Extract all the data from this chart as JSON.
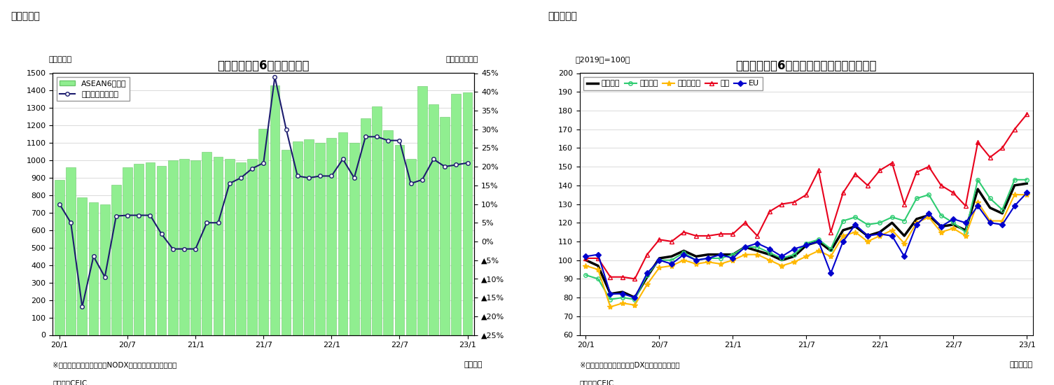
{
  "chart1": {
    "title": "アセアン主要6カ国の輸出額",
    "title_label": "（図表１）",
    "ylabel_left": "（億ドル）",
    "ylabel_right": "（前年同月比）",
    "xlabel": "（年月）",
    "note1": "※シンガポールの輸出額はNODX（石油と再輸出除く）。",
    "note2": "（資料）CEIC",
    "legend_bar": "ASEAN6カ国計",
    "legend_line": "増加率（右目盛）",
    "bar_color": "#90EE90",
    "bar_edge_color": "#6DC86D",
    "line_color": "#1C1C6E",
    "ylim_left": [
      0,
      1500
    ],
    "ylim_right": [
      -0.25,
      0.45
    ],
    "ytick_labels_right": [
      "▲25%",
      "▲20%",
      "▲15%",
      "▲10%",
      "▲5%",
      "0%",
      "5%",
      "10%",
      "15%",
      "20%",
      "25%",
      "30%",
      "35%",
      "40%",
      "45%"
    ],
    "ytick_values_right": [
      -0.25,
      -0.2,
      -0.15,
      -0.1,
      -0.05,
      0.0,
      0.05,
      0.1,
      0.15,
      0.2,
      0.25,
      0.3,
      0.35,
      0.4,
      0.45
    ],
    "bar_values": [
      890,
      960,
      790,
      760,
      750,
      860,
      960,
      980,
      990,
      970,
      1000,
      1010,
      1000,
      1050,
      1020,
      1010,
      990,
      1010,
      1180,
      1430,
      1060,
      1110,
      1120,
      1100,
      1130,
      1160,
      1100,
      1240,
      1310,
      1175,
      1090,
      1010,
      1425,
      1320,
      1250,
      1380,
      1390
    ],
    "line_values": [
      0.1,
      0.05,
      -0.175,
      -0.04,
      -0.095,
      0.068,
      0.07,
      0.07,
      0.07,
      0.02,
      -0.02,
      -0.02,
      -0.02,
      0.05,
      0.05,
      0.155,
      0.17,
      0.195,
      0.21,
      0.44,
      0.3,
      0.175,
      0.17,
      0.175,
      0.175,
      0.22,
      0.17,
      0.28,
      0.28,
      0.27,
      0.27,
      0.155,
      0.165,
      0.22,
      0.2,
      0.205,
      0.21
    ],
    "n_points": 37,
    "xtick_positions": [
      0,
      6,
      12,
      18,
      24,
      30,
      36
    ],
    "xtick_labels": [
      "20/1",
      "20/7",
      "21/1",
      "21/7",
      "22/1",
      "22/7",
      "23/1"
    ]
  },
  "chart2": {
    "title": "アセアン主要6カ国　仕向け地別の輸出動向",
    "title_label": "（図表２）",
    "ylabel_left": "（2019年=100）",
    "xlabel": "（年／月）",
    "note1": "※シンガポールの輸出額はDX（再輸出除く）。",
    "note2": "（資料）CEIC",
    "ylim": [
      60,
      200
    ],
    "yticks": [
      60,
      70,
      80,
      90,
      100,
      110,
      120,
      130,
      140,
      150,
      160,
      170,
      180,
      190,
      200
    ],
    "xtick_positions": [
      0,
      6,
      12,
      18,
      24,
      30,
      36
    ],
    "xtick_labels": [
      "20/1",
      "20/7",
      "21/1",
      "21/7",
      "22/1",
      "22/7",
      "23/1"
    ],
    "n_points": 37,
    "series": {
      "輸出全体": {
        "color": "#000000",
        "marker": "None",
        "linewidth": 2.5,
        "markersize": 0,
        "fillstyle": "none",
        "values": [
          100,
          97,
          82,
          83,
          80,
          91,
          101,
          102,
          105,
          102,
          103,
          103,
          103,
          107,
          105,
          103,
          100,
          102,
          108,
          110,
          105,
          116,
          118,
          113,
          115,
          120,
          113,
          122,
          124,
          118,
          119,
          116,
          138,
          128,
          125,
          140,
          141
        ]
      },
      "東アジア": {
        "color": "#2ECC71",
        "marker": "o",
        "markersize": 4,
        "linewidth": 1.5,
        "fillstyle": "none",
        "values": [
          92,
          90,
          79,
          80,
          79,
          92,
          100,
          100,
          104,
          100,
          101,
          101,
          103,
          107,
          107,
          104,
          101,
          103,
          109,
          111,
          106,
          121,
          123,
          119,
          120,
          123,
          121,
          133,
          135,
          124,
          120,
          115,
          143,
          133,
          127,
          143,
          143
        ]
      },
      "東南アジア": {
        "color": "#FFB800",
        "marker": "*",
        "markersize": 6,
        "linewidth": 1.5,
        "fillstyle": "full",
        "values": [
          97,
          95,
          75,
          77,
          76,
          87,
          96,
          97,
          100,
          98,
          99,
          98,
          100,
          103,
          103,
          100,
          97,
          99,
          102,
          105,
          102,
          113,
          115,
          110,
          113,
          116,
          109,
          120,
          123,
          115,
          117,
          113,
          131,
          121,
          121,
          135,
          135
        ]
      },
      "北米": {
        "color": "#E8001C",
        "marker": "^",
        "markersize": 5,
        "linewidth": 1.5,
        "fillstyle": "none",
        "values": [
          101,
          101,
          91,
          91,
          90,
          103,
          111,
          110,
          115,
          113,
          113,
          114,
          114,
          120,
          113,
          126,
          130,
          131,
          135,
          148,
          115,
          136,
          146,
          140,
          148,
          152,
          130,
          147,
          150,
          140,
          136,
          129,
          163,
          155,
          160,
          170,
          178
        ]
      },
      "EU": {
        "color": "#0000CD",
        "marker": "D",
        "markersize": 4,
        "linewidth": 1.5,
        "fillstyle": "full",
        "values": [
          102,
          103,
          82,
          82,
          80,
          93,
          100,
          98,
          103,
          100,
          101,
          103,
          101,
          107,
          109,
          106,
          102,
          106,
          108,
          110,
          93,
          110,
          119,
          113,
          114,
          113,
          102,
          119,
          125,
          118,
          122,
          120,
          129,
          120,
          119,
          129,
          136
        ]
      }
    }
  }
}
